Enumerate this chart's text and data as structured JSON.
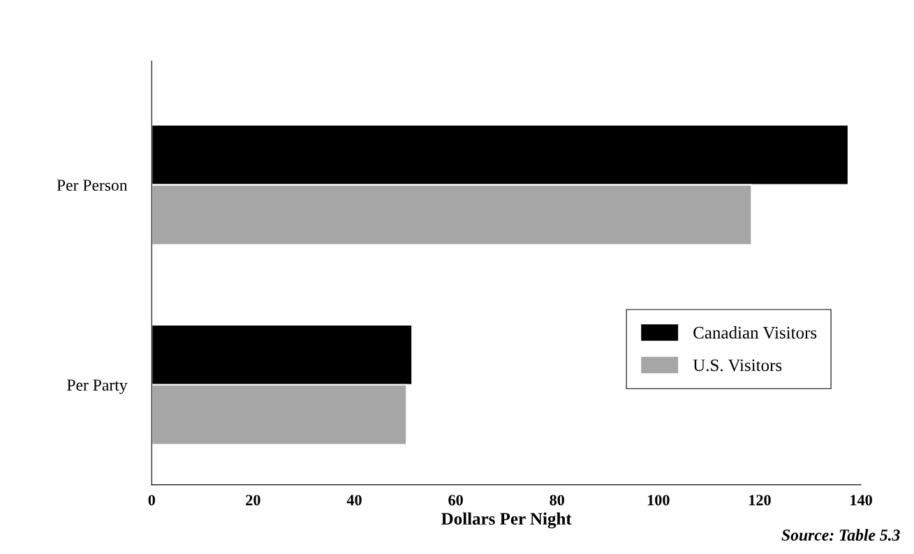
{
  "chart_data": {
    "type": "bar",
    "orientation": "horizontal",
    "categories": [
      "Per Person",
      "Per Party"
    ],
    "series": [
      {
        "name": "Canadian Visitors",
        "color": "#000000",
        "values": [
          137.5,
          51.4
        ]
      },
      {
        "name": "U.S. Visitors",
        "color": "#a6a6a6",
        "values": [
          118.4,
          50.3
        ]
      }
    ],
    "xlabel": "Dollars Per Night",
    "xlim": [
      0,
      140
    ],
    "xticks": [
      0,
      20,
      40,
      60,
      80,
      100,
      120,
      140
    ],
    "grid": false,
    "legend": "right",
    "annotations": [
      "Source: Table 5.3"
    ]
  }
}
